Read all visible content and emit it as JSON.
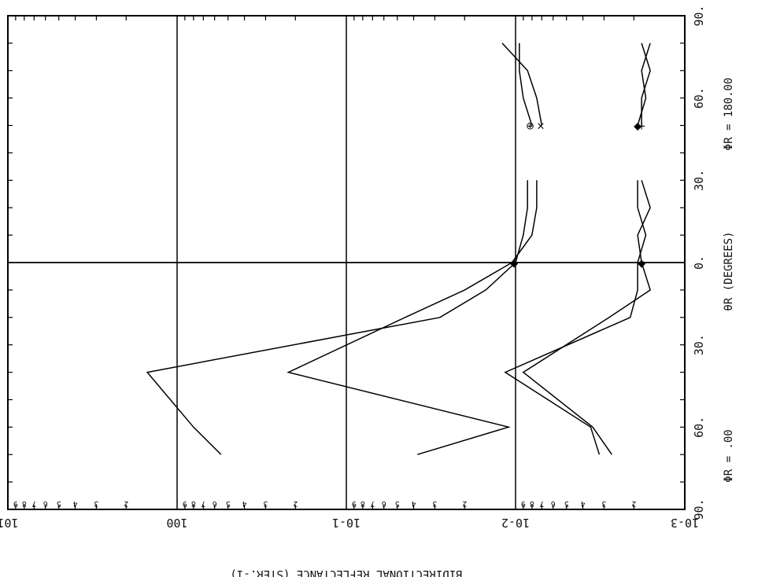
{
  "chart_data": {
    "type": "line",
    "title": "",
    "orientation": "rotated-90-clockwise",
    "xlabel": "θR (DEGREES)",
    "ylabel": "BIDIRECTIONAL REFLECTANCE (STER.-1)",
    "y_scale": "log",
    "xlim": [
      -90,
      90
    ],
    "ylim": [
      0.001,
      10
    ],
    "grid": true,
    "x_ticks": [
      "90.",
      "60.",
      "30.",
      "0.",
      "30.",
      "60.",
      "90."
    ],
    "y_ticks": [
      "10-3",
      "10-2",
      "10-1",
      "100",
      "101"
    ],
    "y_minor_labels": [
      "2",
      "3",
      "4",
      "5",
      "6",
      "7",
      "8",
      "9"
    ],
    "phi_left_label": "ΦR = .00",
    "phi_right_label": "ΦR = 180.00",
    "series": [
      {
        "x": [
          -70,
          -60,
          -40,
          -20,
          -10,
          0,
          10,
          20,
          30
        ],
        "y": [
          0.55,
          0.8,
          1.5,
          0.028,
          0.015,
          0.01,
          0.009,
          0.0085,
          0.0085
        ]
      },
      {
        "x": [
          -70,
          -60,
          -40,
          -20,
          -10,
          0,
          10,
          20,
          30
        ],
        "y": [
          0.038,
          0.011,
          0.22,
          0.045,
          0.02,
          0.0105,
          0.008,
          0.0075,
          0.0075
        ]
      },
      {
        "x": [
          -70,
          -60,
          -40,
          -20,
          -10,
          0,
          10,
          20,
          30
        ],
        "y": [
          0.0032,
          0.0036,
          0.0115,
          0.0021,
          0.0019,
          0.0019,
          0.0017,
          0.0019,
          0.0019
        ]
      },
      {
        "x": [
          -70,
          -60,
          -40,
          -20,
          -10,
          0,
          10,
          20,
          30
        ],
        "y": [
          0.0027,
          0.0035,
          0.009,
          0.0028,
          0.0016,
          0.0018,
          0.0019,
          0.0016,
          0.0018
        ]
      },
      {
        "x": [
          50,
          60,
          70,
          80
        ],
        "y": [
          0.008,
          0.009,
          0.0095,
          0.0095
        ]
      },
      {
        "x": [
          50,
          60,
          70,
          80
        ],
        "y": [
          0.007,
          0.0075,
          0.0085,
          0.012
        ]
      },
      {
        "x": [
          50,
          60,
          70,
          80
        ],
        "y": [
          0.0019,
          0.0017,
          0.0018,
          0.0016
        ]
      },
      {
        "x": [
          50,
          60,
          70,
          80
        ],
        "y": [
          0.0018,
          0.0018,
          0.0016,
          0.0018
        ]
      }
    ],
    "markers": [
      {
        "symbol": "⊕",
        "x": 50,
        "y": 0.0082
      },
      {
        "symbol": "×",
        "x": 50,
        "y": 0.0071
      },
      {
        "symbol": "◆",
        "x": 50,
        "y": 0.0019
      },
      {
        "symbol": "+",
        "x": 50,
        "y": 0.0018
      },
      {
        "symbol": "◆",
        "x": 0,
        "y": 0.0102
      },
      {
        "symbol": "◆",
        "x": 0,
        "y": 0.0018
      }
    ]
  }
}
